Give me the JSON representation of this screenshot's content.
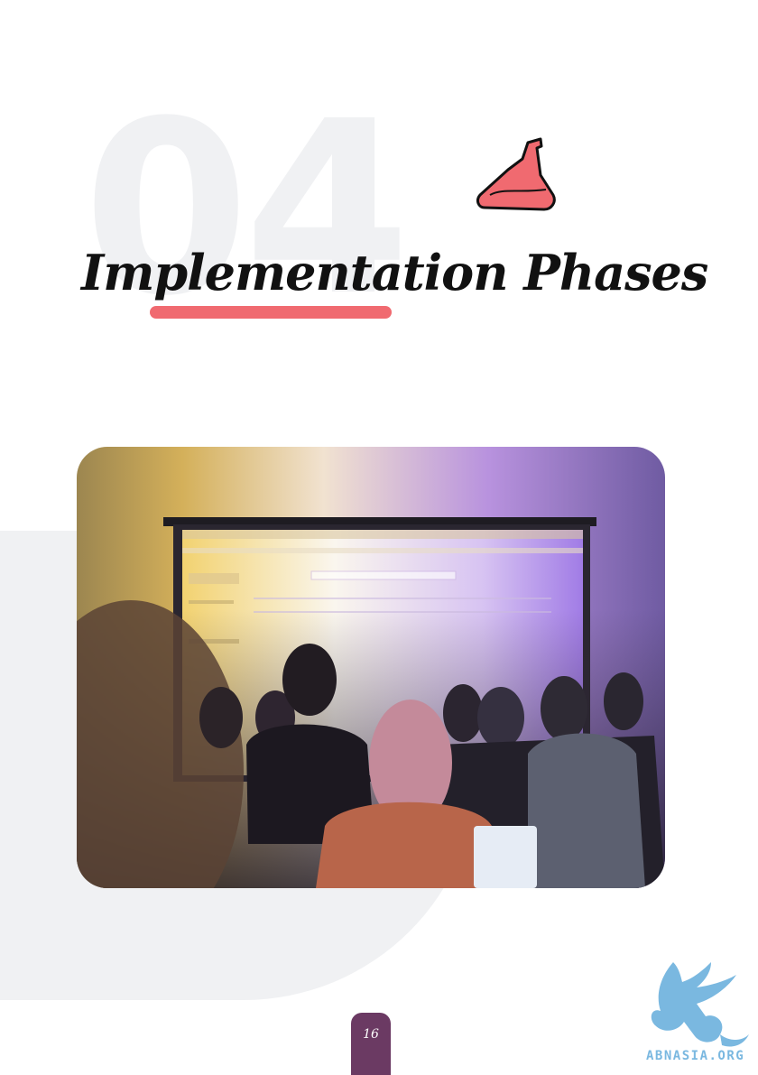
{
  "section": {
    "number": "04",
    "title": "Implementation Phases"
  },
  "page": {
    "number": "16"
  },
  "logo": {
    "text": "ABNASIA.ORG"
  },
  "icons": {
    "flask": "flask-icon",
    "logo": "dragon-logo-icon"
  },
  "colors": {
    "accent": "#f06a70",
    "page_tab": "#6b3a63",
    "background_shape": "#f0f1f3",
    "logo": "#7ab8e0"
  }
}
